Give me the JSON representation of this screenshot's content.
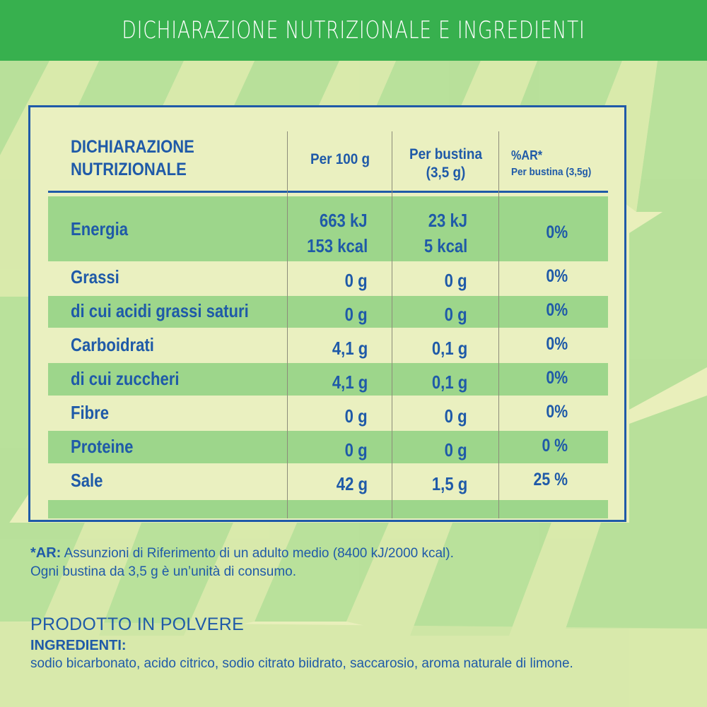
{
  "header": {
    "title": "DICHIARAZIONE NUTRIZIONALE E INGREDIENTI"
  },
  "table": {
    "headers": {
      "label": "DICHIARAZIONE NUTRIZIONALE",
      "per100": "Per 100 g",
      "bustina_line1": "Per bustina",
      "bustina_line2": "(3,5 g)",
      "ar_line1": "%AR*",
      "ar_line2": "Per bustina (3,5g)"
    },
    "rows": [
      {
        "label": "Energia",
        "per100_line1": "663 kJ",
        "per100_line2": "153 kcal",
        "bustina_line1": "23 kJ",
        "bustina_line2": "5 kcal",
        "ar": "0%"
      },
      {
        "label": "Grassi",
        "per100": "0 g",
        "bustina": "0 g",
        "ar": "0%"
      },
      {
        "label": "di cui acidi grassi saturi",
        "per100": "0 g",
        "bustina": "0 g",
        "ar": "0%"
      },
      {
        "label": "Carboidrati",
        "per100": "4,1 g",
        "bustina": "0,1 g",
        "ar": "0%"
      },
      {
        "label": "di cui zuccheri",
        "per100": "4,1 g",
        "bustina": "0,1 g",
        "ar": "0%"
      },
      {
        "label": "Fibre",
        "per100": "0 g",
        "bustina": "0 g",
        "ar": "0%"
      },
      {
        "label": "Proteine",
        "per100": "0 g",
        "bustina": "0 g",
        "ar": "0 %"
      },
      {
        "label": "Sale",
        "per100": "42 g",
        "bustina": "1,5 g",
        "ar": "25 %"
      }
    ]
  },
  "footnote": {
    "marker": "*AR:",
    "line1": "Assunzioni di Riferimento di un adulto medio (8400 kJ/2000 kcal).",
    "line2": "Ogni bustina da 3,5 g è un’unità di consumo."
  },
  "product": {
    "title": "PRODOTTO IN POLVERE",
    "ingredients_label": "INGREDIENTI:",
    "ingredients": "sodio bicarbonato, acido citrico, sodio citrato biidrato, saccarosio, aroma naturale di limone."
  },
  "colors": {
    "header_green": "#37b04e",
    "text_blue": "#1f5aa8",
    "band_green": "#9dd68b",
    "background": "#e9efbb"
  }
}
